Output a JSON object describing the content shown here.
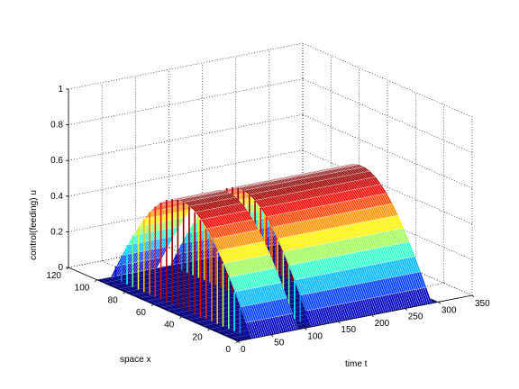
{
  "chart_data": {
    "type": "surface",
    "title": "",
    "xlabel": "time t",
    "ylabel": "space x",
    "zlabel": "control(feeding) u",
    "xlim": [
      0,
      350
    ],
    "ylim": [
      0,
      120
    ],
    "zlim": [
      0,
      1
    ],
    "x_ticks": [
      "0",
      "50",
      "100",
      "150",
      "200",
      "250",
      "300",
      "350"
    ],
    "y_ticks": [
      "0",
      "20",
      "40",
      "60",
      "80",
      "100",
      "120"
    ],
    "z_ticks": [
      "0",
      "0.2",
      "0.4",
      "0.6",
      "0.8",
      "1"
    ],
    "grid": true,
    "colormap": "jet",
    "pulses": [
      {
        "t_start": 20,
        "t_end": 90,
        "x_start": 0,
        "x_end": 100,
        "peak": 0.6
      },
      {
        "t_start": 110,
        "t_end": 200,
        "x_start": 0,
        "x_end": 100,
        "peak": 0.6
      },
      {
        "t_start": 200,
        "t_end": 290,
        "x_start": 0,
        "x_end": 100,
        "peak": 0.6
      }
    ],
    "t_range_surface": [
      0,
      300
    ],
    "x_range_surface": [
      0,
      100
    ]
  },
  "colors": {
    "base": "#00007f",
    "grid": "#000000",
    "background": "#ffffff"
  }
}
